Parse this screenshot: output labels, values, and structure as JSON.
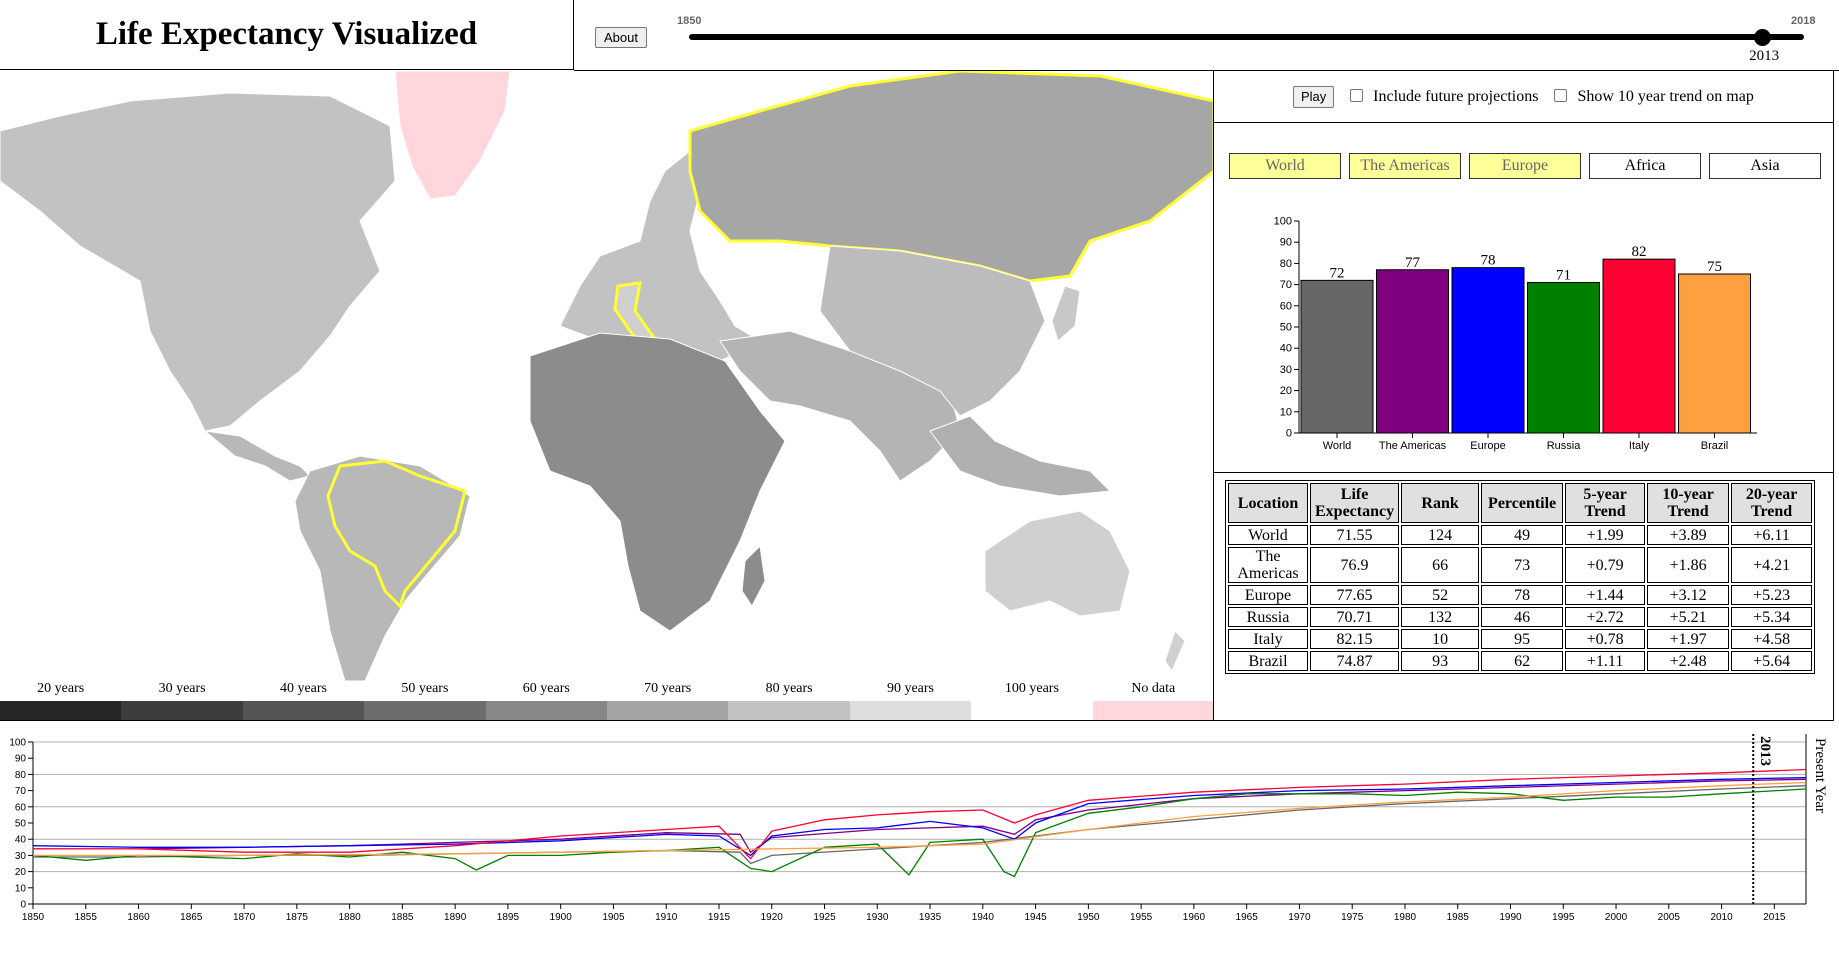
{
  "header": {
    "title": "Life Expectancy Visualized",
    "about_label": "About"
  },
  "slider": {
    "min_label": "1850",
    "max_label": "2018",
    "current_year": "2013",
    "min": 1850,
    "max": 2018,
    "value": 2013
  },
  "controls": {
    "play_label": "Play",
    "future_label": "Include future projections",
    "trend_label": "Show 10 year trend on map",
    "future_checked": false,
    "trend_checked": false
  },
  "map": {
    "highlight_color": "#ffff33",
    "nodata_color": "#ffd6dc",
    "legend": [
      {
        "label": "20 years",
        "color": "#262626"
      },
      {
        "label": "30 years",
        "color": "#3d3d3d"
      },
      {
        "label": "40 years",
        "color": "#555555"
      },
      {
        "label": "50 years",
        "color": "#6d6d6d"
      },
      {
        "label": "60 years",
        "color": "#878787"
      },
      {
        "label": "70 years",
        "color": "#a4a4a4"
      },
      {
        "label": "80 years",
        "color": "#c2c2c2"
      },
      {
        "label": "90 years",
        "color": "#dedede"
      },
      {
        "label": "100 years",
        "color": "#ffffff"
      },
      {
        "label": "No data",
        "color": "#ffd6dc"
      }
    ]
  },
  "regions": [
    {
      "label": "World",
      "selected": true
    },
    {
      "label": "The Americas",
      "selected": true
    },
    {
      "label": "Europe",
      "selected": true
    },
    {
      "label": "Africa",
      "selected": false
    },
    {
      "label": "Asia",
      "selected": false
    }
  ],
  "table": {
    "headers": [
      "Location",
      "Life Expectancy",
      "Rank",
      "Percentile",
      "5-year Trend",
      "10-year Trend",
      "20-year Trend"
    ],
    "rows": [
      [
        "World",
        "71.55",
        "124",
        "49",
        "+1.99",
        "+3.89",
        "+6.11"
      ],
      [
        "The Americas",
        "76.9",
        "66",
        "73",
        "+0.79",
        "+1.86",
        "+4.21"
      ],
      [
        "Europe",
        "77.65",
        "52",
        "78",
        "+1.44",
        "+3.12",
        "+5.23"
      ],
      [
        "Russia",
        "70.71",
        "132",
        "46",
        "+2.72",
        "+5.21",
        "+5.34"
      ],
      [
        "Italy",
        "82.15",
        "10",
        "95",
        "+0.78",
        "+1.97",
        "+4.58"
      ],
      [
        "Brazil",
        "74.87",
        "93",
        "62",
        "+1.11",
        "+2.48",
        "+5.64"
      ]
    ]
  },
  "chart_data": [
    {
      "type": "bar",
      "categories": [
        "World",
        "The Americas",
        "Europe",
        "Russia",
        "Italy",
        "Brazil"
      ],
      "values": [
        72,
        77,
        78,
        71,
        82,
        75
      ],
      "colors": [
        "#666666",
        "#800080",
        "#0000ff",
        "#008000",
        "#ff0033",
        "#ffa040"
      ],
      "ylim": [
        0,
        100
      ],
      "yticks": [
        0,
        10,
        20,
        30,
        40,
        50,
        60,
        70,
        80,
        90,
        100
      ]
    },
    {
      "type": "line",
      "xlim": [
        1850,
        2018
      ],
      "ylim": [
        0,
        100
      ],
      "xticks": [
        1850,
        1855,
        1860,
        1865,
        1870,
        1875,
        1880,
        1885,
        1890,
        1895,
        1900,
        1905,
        1910,
        1915,
        1920,
        1925,
        1930,
        1935,
        1940,
        1945,
        1950,
        1955,
        1960,
        1965,
        1970,
        1975,
        1980,
        1985,
        1990,
        1995,
        2000,
        2005,
        2010,
        2015
      ],
      "yticks": [
        0,
        10,
        20,
        30,
        40,
        50,
        60,
        70,
        80,
        90,
        100
      ],
      "grid": true,
      "marker_year": "2013",
      "right_label": "Present Year",
      "series": [
        {
          "color": "#666666",
          "x": [
            1850,
            1860,
            1870,
            1880,
            1890,
            1900,
            1910,
            1917,
            1918,
            1920,
            1930,
            1940,
            1945,
            1950,
            1960,
            1970,
            1980,
            1990,
            2000,
            2010,
            2018
          ],
          "y": [
            29,
            29,
            30,
            30,
            31,
            32,
            33,
            32,
            25,
            30,
            34,
            38,
            42,
            46,
            52,
            58,
            62,
            65,
            68,
            71,
            73
          ]
        },
        {
          "color": "#800080",
          "x": [
            1850,
            1860,
            1870,
            1880,
            1890,
            1900,
            1910,
            1917,
            1918,
            1920,
            1930,
            1940,
            1943,
            1945,
            1950,
            1960,
            1970,
            1980,
            1990,
            2000,
            2010,
            2018
          ],
          "y": [
            34,
            34,
            35,
            36,
            38,
            40,
            44,
            43,
            32,
            41,
            46,
            48,
            43,
            52,
            58,
            65,
            68,
            70,
            72,
            74,
            76,
            77
          ]
        },
        {
          "color": "#0000ff",
          "x": [
            1850,
            1860,
            1870,
            1880,
            1890,
            1900,
            1910,
            1915,
            1918,
            1920,
            1925,
            1930,
            1935,
            1940,
            1943,
            1945,
            1950,
            1960,
            1970,
            1980,
            1990,
            2000,
            2010,
            2018
          ],
          "y": [
            36,
            35,
            35,
            36,
            37,
            39,
            43,
            42,
            30,
            42,
            46,
            47,
            51,
            47,
            40,
            50,
            62,
            67,
            70,
            71,
            73,
            75,
            77,
            78
          ]
        },
        {
          "color": "#008000",
          "x": [
            1850,
            1855,
            1860,
            1865,
            1870,
            1875,
            1880,
            1885,
            1890,
            1892,
            1895,
            1900,
            1905,
            1910,
            1915,
            1918,
            1920,
            1925,
            1930,
            1933,
            1935,
            1940,
            1942,
            1943,
            1945,
            1950,
            1955,
            1960,
            1965,
            1970,
            1975,
            1980,
            1985,
            1990,
            1995,
            2000,
            2005,
            2010,
            2018
          ],
          "y": [
            30,
            27,
            30,
            29,
            28,
            31,
            29,
            32,
            28,
            21,
            30,
            30,
            32,
            33,
            35,
            22,
            20,
            35,
            37,
            18,
            38,
            40,
            20,
            17,
            44,
            56,
            60,
            65,
            68,
            68,
            68,
            67,
            69,
            68,
            64,
            66,
            66,
            68,
            71
          ]
        },
        {
          "color": "#ff0033",
          "x": [
            1850,
            1860,
            1870,
            1880,
            1890,
            1900,
            1910,
            1915,
            1918,
            1920,
            1925,
            1930,
            1935,
            1940,
            1943,
            1945,
            1950,
            1960,
            1970,
            1980,
            1990,
            2000,
            2010,
            2018
          ],
          "y": [
            34,
            34,
            32,
            32,
            36,
            42,
            46,
            48,
            28,
            45,
            52,
            55,
            57,
            58,
            50,
            55,
            64,
            69,
            72,
            74,
            77,
            79,
            81,
            83
          ]
        },
        {
          "color": "#ffa040",
          "x": [
            1850,
            1870,
            1890,
            1900,
            1910,
            1920,
            1930,
            1940,
            1950,
            1960,
            1970,
            1980,
            1990,
            2000,
            2010,
            2018
          ],
          "y": [
            30,
            30,
            31,
            32,
            33,
            34,
            35,
            37,
            46,
            54,
            59,
            63,
            66,
            70,
            73,
            75
          ]
        }
      ]
    }
  ]
}
